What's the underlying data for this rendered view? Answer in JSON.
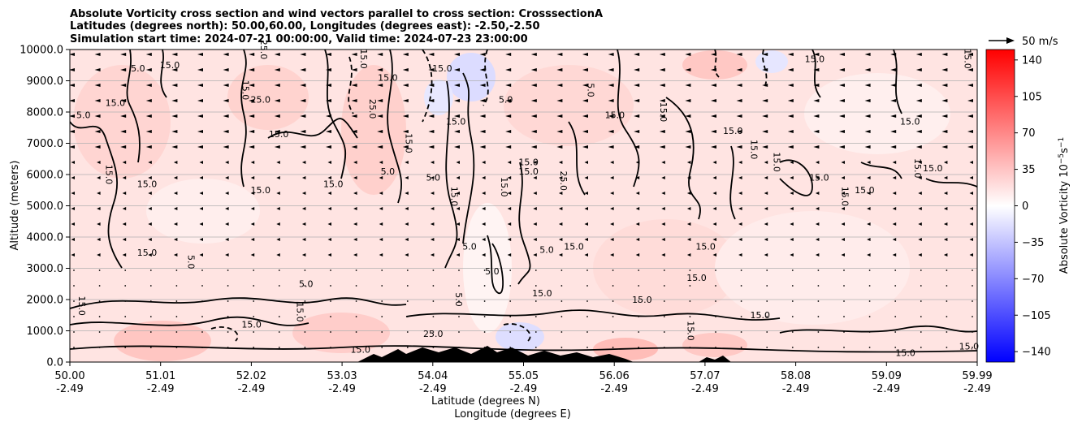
{
  "chart_data": {
    "type": "contour",
    "title_lines": [
      "Absolute Vorticity cross section and wind vectors parallel to cross section: CrosssectionA",
      "Latitudes (degrees north): 50.00,60.00, Longitudes (degrees east): -2.50,-2.50",
      "Simulation start time: 2024-07-21 00:00:00, Valid time: 2024-07-23 23:00:00"
    ],
    "ylabel": "Altitude (meters)",
    "xlabel_lat": "Latitude (degrees N)",
    "xlabel_lon": "Longitude (degrees E)",
    "ylim": [
      0,
      10000
    ],
    "xlim": [
      50.0,
      59.99
    ],
    "y_ticks": [
      "0.0",
      "1000.0",
      "2000.0",
      "3000.0",
      "4000.0",
      "5000.0",
      "6000.0",
      "7000.0",
      "8000.0",
      "9000.0",
      "10000.0"
    ],
    "x_ticks": [
      {
        "lat": "50.00",
        "lon": "-2.49"
      },
      {
        "lat": "51.01",
        "lon": "-2.49"
      },
      {
        "lat": "52.02",
        "lon": "-2.49"
      },
      {
        "lat": "53.03",
        "lon": "-2.49"
      },
      {
        "lat": "54.04",
        "lon": "-2.49"
      },
      {
        "lat": "55.05",
        "lon": "-2.49"
      },
      {
        "lat": "56.06",
        "lon": "-2.49"
      },
      {
        "lat": "57.07",
        "lon": "-2.49"
      },
      {
        "lat": "58.08",
        "lon": "-2.49"
      },
      {
        "lat": "59.09",
        "lon": "-2.49"
      },
      {
        "lat": "59.99",
        "lon": "-2.49"
      }
    ],
    "colorbar": {
      "label": "Absolute Vorticity 10",
      "label_exp1": "−5",
      "label_mid": "s",
      "label_exp2": "−1",
      "range": [
        -150,
        150
      ],
      "ticks": [
        "140",
        "105",
        "70",
        "35",
        "0",
        "−35",
        "−70",
        "−105",
        "−140"
      ],
      "colors": {
        "min": "#0000ff",
        "mid": "#ffffff",
        "max": "#ff0000"
      }
    },
    "quiver_key": "50 m/s",
    "contour_labels": [
      {
        "text": "15.0",
        "lat": 50.1,
        "alt": 1800
      },
      {
        "text": "15.0",
        "lat": 50.5,
        "alt": 8200
      },
      {
        "text": "5.0",
        "lat": 50.15,
        "alt": 7800
      },
      {
        "text": "15.0",
        "lat": 50.4,
        "alt": 6000
      },
      {
        "text": "15.0",
        "lat": 50.85,
        "alt": 5600
      },
      {
        "text": "15.0",
        "lat": 50.85,
        "alt": 3400
      },
      {
        "text": "5.0",
        "lat": 51.3,
        "alt": 3200
      },
      {
        "text": "15.0",
        "lat": 51.1,
        "alt": 9400
      },
      {
        "text": "5.0",
        "lat": 50.75,
        "alt": 9300
      },
      {
        "text": "25.0",
        "lat": 52.1,
        "alt": 10000
      },
      {
        "text": "25.0",
        "lat": 52.1,
        "alt": 8300
      },
      {
        "text": "15.0",
        "lat": 52.3,
        "alt": 7200
      },
      {
        "text": "15.0",
        "lat": 51.9,
        "alt": 8700
      },
      {
        "text": "15.0",
        "lat": 52.1,
        "alt": 5400
      },
      {
        "text": "5.0",
        "lat": 52.6,
        "alt": 2400
      },
      {
        "text": "15.0",
        "lat": 52.5,
        "alt": 1600
      },
      {
        "text": "15.0",
        "lat": 52.0,
        "alt": 1100
      },
      {
        "text": "15.0",
        "lat": 52.9,
        "alt": 5600
      },
      {
        "text": "25.0",
        "lat": 53.3,
        "alt": 8100
      },
      {
        "text": "15.0",
        "lat": 53.5,
        "alt": 9000
      },
      {
        "text": "5.0",
        "lat": 53.5,
        "alt": 6000
      },
      {
        "text": "15.0",
        "lat": 53.2,
        "alt": 9700
      },
      {
        "text": "15.0",
        "lat": 54.1,
        "alt": 9300
      },
      {
        "text": "5.0",
        "lat": 54.0,
        "alt": 5800
      },
      {
        "text": "15.0",
        "lat": 53.7,
        "alt": 7000
      },
      {
        "text": "15.0",
        "lat": 54.25,
        "alt": 7600
      },
      {
        "text": "5.0",
        "lat": 54.8,
        "alt": 8300
      },
      {
        "text": "15.0",
        "lat": 54.2,
        "alt": 5300
      },
      {
        "text": "5.0",
        "lat": 54.4,
        "alt": 3600
      },
      {
        "text": "5.0",
        "lat": 54.65,
        "alt": 2800
      },
      {
        "text": "15.0",
        "lat": 54.75,
        "alt": 5600
      },
      {
        "text": "15.0",
        "lat": 55.05,
        "alt": 6300
      },
      {
        "text": "15.0",
        "lat": 55.05,
        "alt": 6000
      },
      {
        "text": "25.0",
        "lat": 55.4,
        "alt": 5800
      },
      {
        "text": "5.0",
        "lat": 55.25,
        "alt": 3500
      },
      {
        "text": "15.0",
        "lat": 55.55,
        "alt": 3600
      },
      {
        "text": "5.0",
        "lat": 54.25,
        "alt": 2000
      },
      {
        "text": "15.0",
        "lat": 55.2,
        "alt": 2100
      },
      {
        "text": "15.0",
        "lat": 56.0,
        "alt": 7800
      },
      {
        "text": "15.0",
        "lat": 56.5,
        "alt": 8000
      },
      {
        "text": "15.0",
        "lat": 56.3,
        "alt": 1900
      },
      {
        "text": "15.0",
        "lat": 57.3,
        "alt": 7300
      },
      {
        "text": "15.0",
        "lat": 57.5,
        "alt": 6800
      },
      {
        "text": "15.0",
        "lat": 57.0,
        "alt": 3600
      },
      {
        "text": "15.0",
        "lat": 56.9,
        "alt": 2600
      },
      {
        "text": "15.0",
        "lat": 57.75,
        "alt": 6400
      },
      {
        "text": "15.0",
        "lat": 57.6,
        "alt": 1400
      },
      {
        "text": "15.0",
        "lat": 58.25,
        "alt": 5800
      },
      {
        "text": "15.0",
        "lat": 58.5,
        "alt": 5300
      },
      {
        "text": "15.0",
        "lat": 58.75,
        "alt": 5400
      },
      {
        "text": "15.0",
        "lat": 59.25,
        "alt": 7600
      },
      {
        "text": "15.0",
        "lat": 59.3,
        "alt": 6200
      },
      {
        "text": "15.0",
        "lat": 59.5,
        "alt": 6100
      },
      {
        "text": "15.0",
        "lat": 58.2,
        "alt": 9600
      },
      {
        "text": "15.0",
        "lat": 59.85,
        "alt": 9700
      },
      {
        "text": "15.0",
        "lat": 59.2,
        "alt": 200
      },
      {
        "text": "15.0",
        "lat": 59.9,
        "alt": 400
      },
      {
        "text": "5.0",
        "lat": 55.7,
        "alt": 8700
      },
      {
        "text": "15.0",
        "lat": 53.2,
        "alt": 300
      },
      {
        "text": "25.0",
        "lat": 54.0,
        "alt": 800
      },
      {
        "text": "15.0",
        "lat": 56.8,
        "alt": 1000
      }
    ]
  }
}
